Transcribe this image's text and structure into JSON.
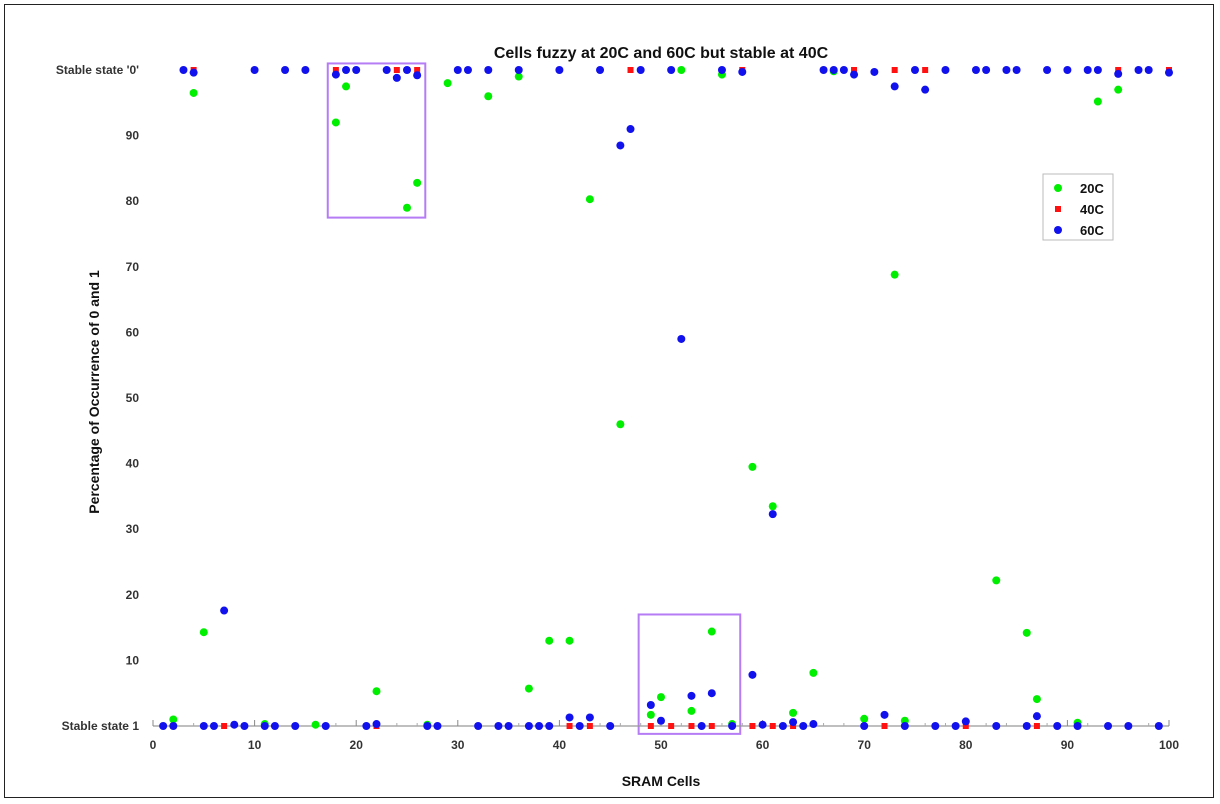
{
  "chart_data": {
    "type": "scatter",
    "title": "Cells fuzzy at 20C and 60C but stable at 40C",
    "xlabel": "SRAM Cells",
    "ylabel": "Percentage of Occurrence of 0 and 1",
    "xlim": [
      0,
      100
    ],
    "ylim": [
      0,
      100
    ],
    "x_ticks": [
      0,
      10,
      20,
      30,
      40,
      50,
      60,
      70,
      80,
      90,
      100
    ],
    "y_ticks": [
      {
        "value": 0,
        "label": "Stable state 1"
      },
      {
        "value": 10,
        "label": "10"
      },
      {
        "value": 20,
        "label": "20"
      },
      {
        "value": 30,
        "label": "30"
      },
      {
        "value": 40,
        "label": "40"
      },
      {
        "value": 50,
        "label": "50"
      },
      {
        "value": 60,
        "label": "60"
      },
      {
        "value": 70,
        "label": "70"
      },
      {
        "value": 80,
        "label": "80"
      },
      {
        "value": 90,
        "label": "90"
      },
      {
        "value": 100,
        "label": "Stable state '0'"
      }
    ],
    "grid": false,
    "legend_position": "upper-right",
    "highlight_boxes": [
      {
        "x": [
          17.2,
          26.8
        ],
        "y": [
          77.5,
          101
        ]
      },
      {
        "x": [
          47.8,
          57.8
        ],
        "y": [
          -1.2,
          17
        ]
      }
    ],
    "highlight_color": "#b57cf5",
    "series": [
      {
        "name": "20C",
        "color": "#00ee00",
        "points": [
          [
            2,
            1
          ],
          [
            4,
            96.5
          ],
          [
            5,
            14.3
          ],
          [
            11,
            0.3
          ],
          [
            16,
            0.2
          ],
          [
            18,
            92
          ],
          [
            19,
            97.5
          ],
          [
            22,
            5.3
          ],
          [
            25,
            79
          ],
          [
            26,
            82.8
          ],
          [
            27,
            0.2
          ],
          [
            29,
            98
          ],
          [
            33,
            96
          ],
          [
            36,
            99
          ],
          [
            37,
            5.7
          ],
          [
            39,
            13
          ],
          [
            41,
            13
          ],
          [
            43,
            80.3
          ],
          [
            46,
            46
          ],
          [
            49,
            1.7
          ],
          [
            50,
            4.4
          ],
          [
            52,
            100
          ],
          [
            53,
            2.3
          ],
          [
            55,
            14.4
          ],
          [
            56,
            99.3
          ],
          [
            57,
            0.3
          ],
          [
            59,
            39.5
          ],
          [
            61,
            33.5
          ],
          [
            63,
            2
          ],
          [
            65,
            8.1
          ],
          [
            67,
            99.8
          ],
          [
            70,
            1.1
          ],
          [
            73,
            68.8
          ],
          [
            74,
            0.8
          ],
          [
            83,
            22.2
          ],
          [
            86,
            14.2
          ],
          [
            87,
            4.1
          ],
          [
            91,
            0.5
          ],
          [
            93,
            95.2
          ],
          [
            95,
            97
          ]
        ]
      },
      {
        "name": "40C",
        "color": "#ff1111",
        "points": [
          [
            2,
            0
          ],
          [
            4,
            100
          ],
          [
            7,
            0
          ],
          [
            18,
            100
          ],
          [
            22,
            0
          ],
          [
            24,
            100
          ],
          [
            25,
            100
          ],
          [
            26,
            100
          ],
          [
            41,
            0
          ],
          [
            43,
            0
          ],
          [
            47,
            100
          ],
          [
            49,
            0
          ],
          [
            51,
            0
          ],
          [
            53,
            0
          ],
          [
            55,
            0
          ],
          [
            58,
            100
          ],
          [
            59,
            0
          ],
          [
            61,
            0
          ],
          [
            63,
            0
          ],
          [
            66,
            100
          ],
          [
            69,
            100
          ],
          [
            72,
            0
          ],
          [
            73,
            100
          ],
          [
            76,
            100
          ],
          [
            80,
            0
          ],
          [
            86,
            0
          ],
          [
            87,
            0
          ],
          [
            95,
            100
          ],
          [
            99,
            0
          ],
          [
            100,
            100
          ]
        ]
      },
      {
        "name": "60C",
        "color": "#1111ee",
        "points": [
          [
            1,
            0
          ],
          [
            2,
            0
          ],
          [
            3,
            100
          ],
          [
            4,
            99.6
          ],
          [
            5,
            0
          ],
          [
            6,
            0
          ],
          [
            7,
            17.6
          ],
          [
            8,
            0.2
          ],
          [
            9,
            0
          ],
          [
            10,
            100
          ],
          [
            11,
            0
          ],
          [
            12,
            0
          ],
          [
            13,
            100
          ],
          [
            14,
            0
          ],
          [
            15,
            100
          ],
          [
            17,
            0
          ],
          [
            18,
            99.3
          ],
          [
            19,
            100
          ],
          [
            20,
            100
          ],
          [
            21,
            0
          ],
          [
            22,
            0.3
          ],
          [
            23,
            100
          ],
          [
            24,
            98.8
          ],
          [
            25,
            100
          ],
          [
            26,
            99.2
          ],
          [
            27,
            0
          ],
          [
            28,
            0
          ],
          [
            30,
            100
          ],
          [
            31,
            100
          ],
          [
            32,
            0
          ],
          [
            33,
            100
          ],
          [
            34,
            0
          ],
          [
            35,
            0
          ],
          [
            36,
            100
          ],
          [
            37,
            0
          ],
          [
            38,
            0
          ],
          [
            39,
            0
          ],
          [
            40,
            100
          ],
          [
            41,
            1.3
          ],
          [
            42,
            0
          ],
          [
            43,
            1.3
          ],
          [
            44,
            100
          ],
          [
            45,
            0
          ],
          [
            46,
            88.5
          ],
          [
            47,
            91
          ],
          [
            48,
            100
          ],
          [
            49,
            3.2
          ],
          [
            50,
            0.8
          ],
          [
            51,
            100
          ],
          [
            52,
            59
          ],
          [
            53,
            4.6
          ],
          [
            54,
            0
          ],
          [
            55,
            5
          ],
          [
            56,
            100
          ],
          [
            57,
            0
          ],
          [
            58,
            99.7
          ],
          [
            59,
            7.8
          ],
          [
            60,
            0.2
          ],
          [
            61,
            32.3
          ],
          [
            62,
            0
          ],
          [
            63,
            0.6
          ],
          [
            64,
            0
          ],
          [
            65,
            0.3
          ],
          [
            66,
            100
          ],
          [
            67,
            100
          ],
          [
            68,
            100
          ],
          [
            69,
            99.3
          ],
          [
            70,
            0
          ],
          [
            71,
            99.7
          ],
          [
            72,
            1.7
          ],
          [
            73,
            97.5
          ],
          [
            74,
            0
          ],
          [
            75,
            100
          ],
          [
            76,
            97
          ],
          [
            77,
            0
          ],
          [
            78,
            100
          ],
          [
            79,
            0
          ],
          [
            80,
            0.7
          ],
          [
            81,
            100
          ],
          [
            82,
            100
          ],
          [
            83,
            0
          ],
          [
            84,
            100
          ],
          [
            85,
            100
          ],
          [
            86,
            0
          ],
          [
            87,
            1.5
          ],
          [
            88,
            100
          ],
          [
            89,
            0
          ],
          [
            90,
            100
          ],
          [
            91,
            0
          ],
          [
            92,
            100
          ],
          [
            93,
            100
          ],
          [
            94,
            0
          ],
          [
            95,
            99.4
          ],
          [
            96,
            0
          ],
          [
            97,
            100
          ],
          [
            98,
            100
          ],
          [
            99,
            0
          ],
          [
            100,
            99.6
          ]
        ]
      }
    ]
  }
}
